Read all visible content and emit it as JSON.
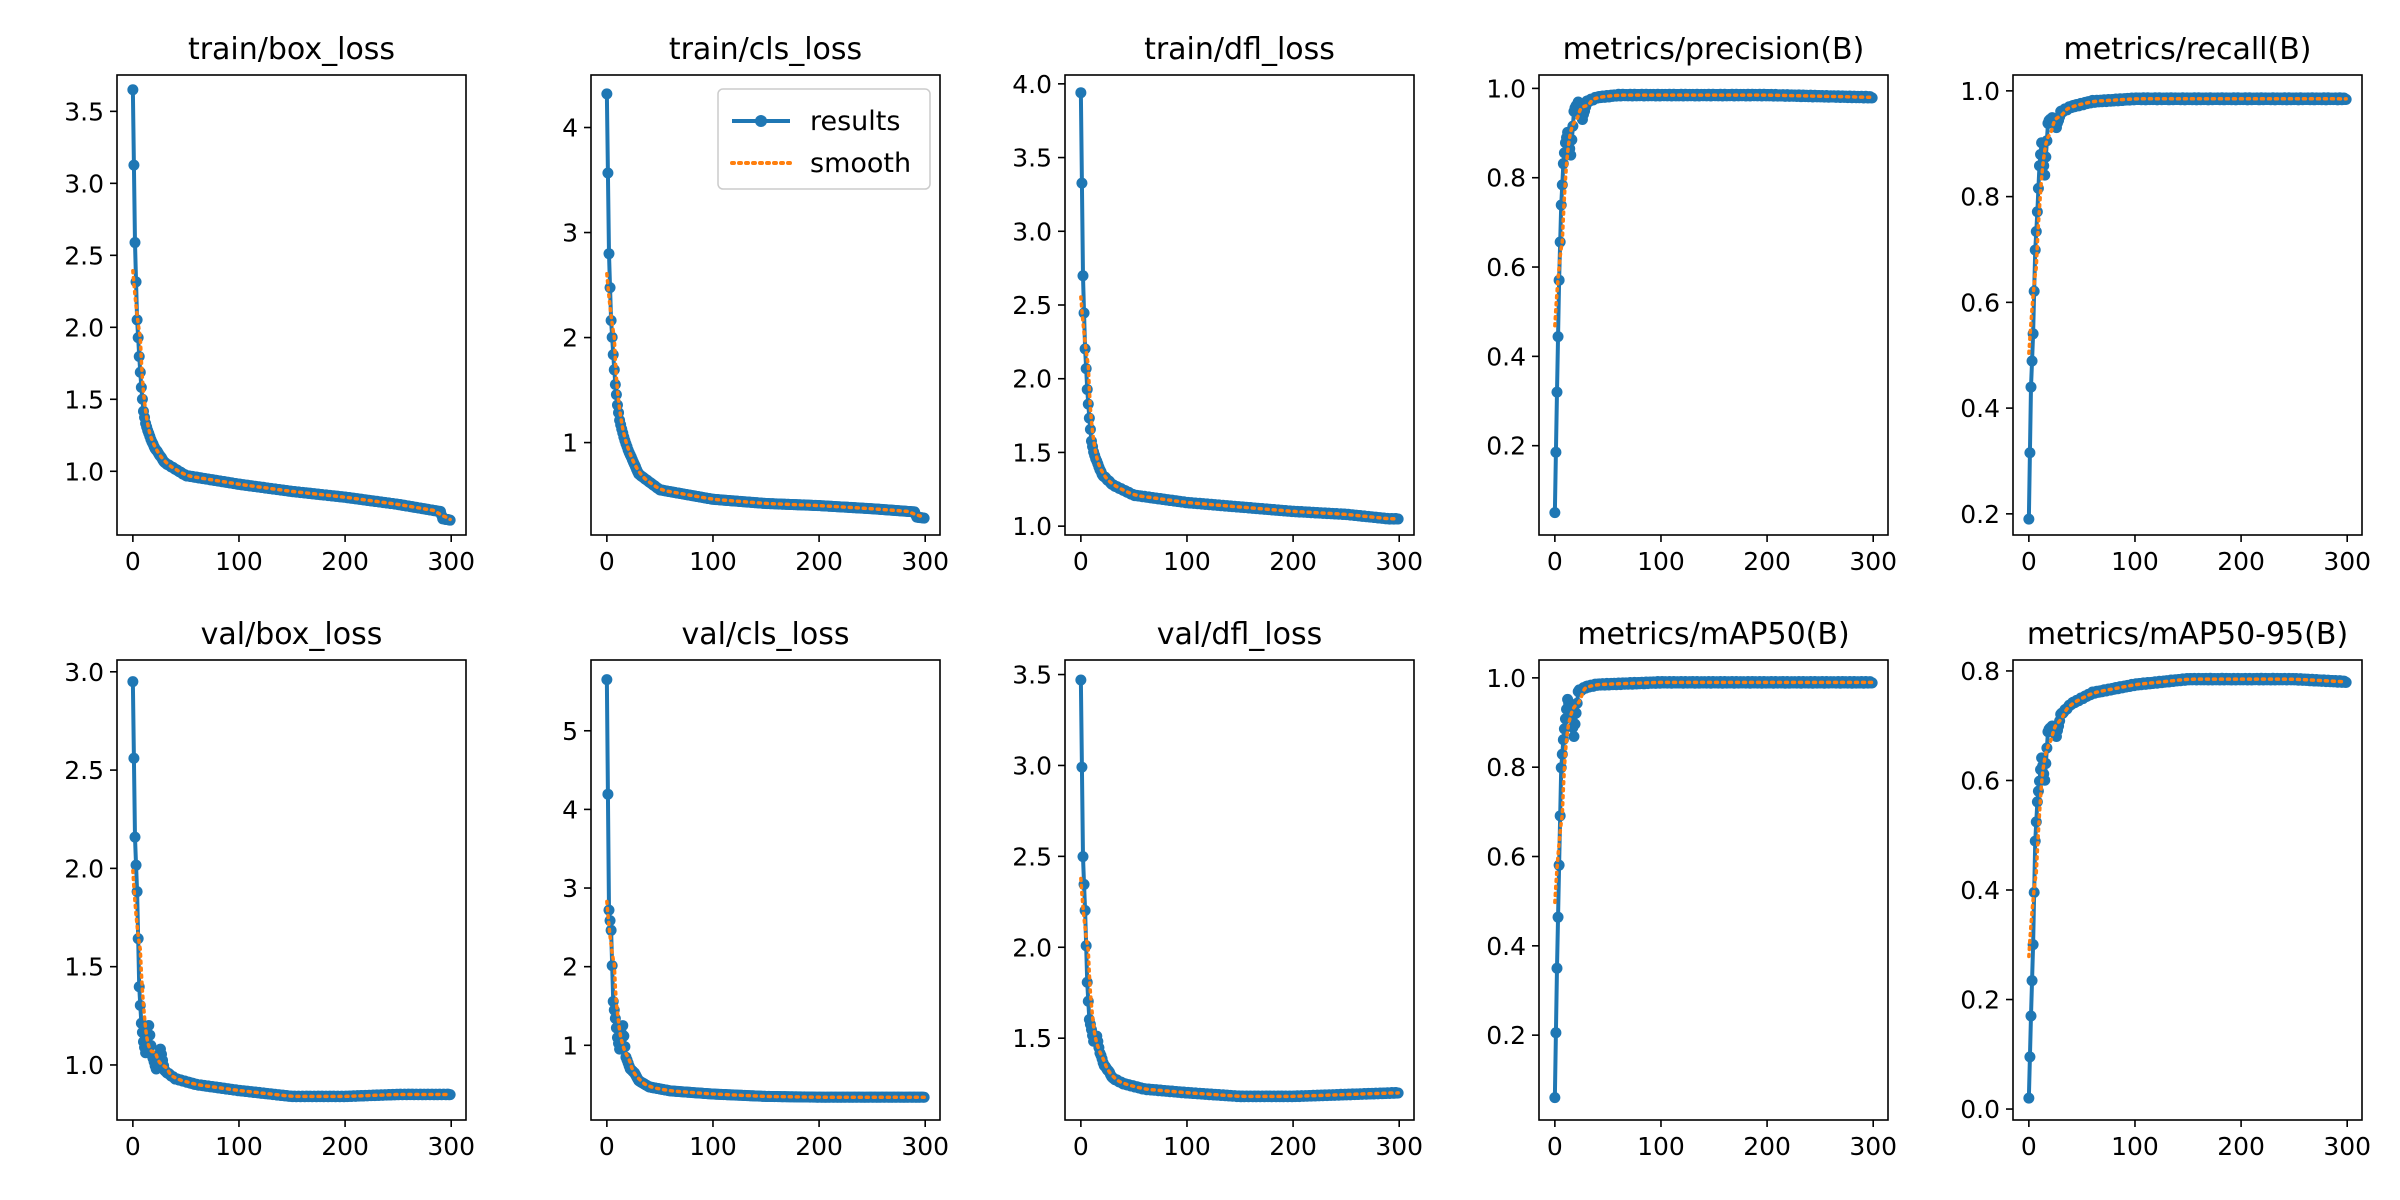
{
  "chart_data": [
    {
      "type": "line",
      "title": "train/box_loss",
      "xlim": [
        -14.95,
        313.95
      ],
      "ylim": [
        0.5575,
        3.7525
      ],
      "xticks": [
        0,
        100,
        200,
        300
      ],
      "yticks": [
        1.0,
        1.5,
        2.0,
        2.5,
        3.0,
        3.5
      ],
      "ytick_labels": [
        "1.0",
        "1.5",
        "2.0",
        "2.5",
        "3.0",
        "3.5"
      ],
      "knots": [
        [
          0,
          3.65
        ],
        [
          2,
          2.59
        ],
        [
          4,
          2.05
        ],
        [
          6,
          1.8
        ],
        [
          8,
          1.58
        ],
        [
          10,
          1.42
        ],
        [
          12,
          1.33
        ],
        [
          16,
          1.24
        ],
        [
          20,
          1.17
        ],
        [
          30,
          1.06
        ],
        [
          50,
          0.97
        ],
        [
          100,
          0.91
        ],
        [
          150,
          0.86
        ],
        [
          200,
          0.82
        ],
        [
          250,
          0.77
        ],
        [
          290,
          0.72
        ],
        [
          292,
          0.67
        ],
        [
          300,
          0.66
        ]
      ]
    },
    {
      "type": "line",
      "title": "train/cls_loss",
      "xlim": [
        -14.95,
        313.95
      ],
      "ylim": [
        0.12,
        4.5
      ],
      "xticks": [
        0,
        100,
        200,
        300
      ],
      "yticks": [
        1,
        2,
        3,
        4
      ],
      "ytick_labels": [
        "1",
        "2",
        "3",
        "4"
      ],
      "legend": {
        "entries": [
          "results",
          "smooth"
        ],
        "location": "upper right"
      },
      "knots": [
        [
          0,
          4.32
        ],
        [
          2,
          2.8
        ],
        [
          4,
          2.16
        ],
        [
          6,
          1.84
        ],
        [
          8,
          1.55
        ],
        [
          10,
          1.36
        ],
        [
          12,
          1.21
        ],
        [
          16,
          1.05
        ],
        [
          20,
          0.93
        ],
        [
          30,
          0.7
        ],
        [
          50,
          0.55
        ],
        [
          100,
          0.46
        ],
        [
          150,
          0.42
        ],
        [
          200,
          0.4
        ],
        [
          250,
          0.37
        ],
        [
          290,
          0.34
        ],
        [
          292,
          0.29
        ],
        [
          300,
          0.28
        ]
      ]
    },
    {
      "type": "line",
      "title": "train/dfl_loss",
      "xlim": [
        -14.95,
        313.95
      ],
      "ylim": [
        0.94,
        4.06
      ],
      "xticks": [
        0,
        100,
        200,
        300
      ],
      "yticks": [
        1.0,
        1.5,
        2.0,
        2.5,
        3.0,
        3.5,
        4.0
      ],
      "ytick_labels": [
        "1.0",
        "1.5",
        "2.0",
        "2.5",
        "3.0",
        "3.5",
        "4.0"
      ],
      "knots": [
        [
          0,
          3.94
        ],
        [
          2,
          2.7
        ],
        [
          4,
          2.2
        ],
        [
          6,
          1.93
        ],
        [
          8,
          1.73
        ],
        [
          10,
          1.58
        ],
        [
          12,
          1.5
        ],
        [
          16,
          1.42
        ],
        [
          20,
          1.35
        ],
        [
          30,
          1.28
        ],
        [
          50,
          1.21
        ],
        [
          100,
          1.16
        ],
        [
          150,
          1.13
        ],
        [
          200,
          1.1
        ],
        [
          250,
          1.08
        ],
        [
          290,
          1.05
        ],
        [
          300,
          1.05
        ]
      ]
    },
    {
      "type": "line",
      "title": "metrics/precision(B)",
      "xlim": [
        -14.95,
        313.95
      ],
      "ylim": [
        0.0,
        1.03
      ],
      "xticks": [
        0,
        100,
        200,
        300
      ],
      "yticks": [
        0.2,
        0.4,
        0.6,
        0.8,
        1.0
      ],
      "ytick_labels": [
        "0.2",
        "0.4",
        "0.6",
        "0.8",
        "1.0"
      ],
      "knots": [
        [
          0,
          0.05
        ],
        [
          2,
          0.32
        ],
        [
          4,
          0.57
        ],
        [
          6,
          0.74
        ],
        [
          8,
          0.83
        ],
        [
          10,
          0.88
        ],
        [
          12,
          0.9
        ],
        [
          15,
          0.85
        ],
        [
          18,
          0.95
        ],
        [
          22,
          0.97
        ],
        [
          26,
          0.93
        ],
        [
          30,
          0.97
        ],
        [
          40,
          0.98
        ],
        [
          60,
          0.985
        ],
        [
          100,
          0.985
        ],
        [
          200,
          0.985
        ],
        [
          300,
          0.98
        ]
      ]
    },
    {
      "type": "line",
      "title": "metrics/recall(B)",
      "xlim": [
        -14.95,
        313.95
      ],
      "ylim": [
        0.16,
        1.03
      ],
      "xticks": [
        0,
        100,
        200,
        300
      ],
      "yticks": [
        0.2,
        0.4,
        0.6,
        0.8,
        1.0
      ],
      "ytick_labels": [
        "0.2",
        "0.4",
        "0.6",
        "0.8",
        "1.0"
      ],
      "knots": [
        [
          0,
          0.19
        ],
        [
          2,
          0.44
        ],
        [
          4,
          0.54
        ],
        [
          6,
          0.7
        ],
        [
          8,
          0.77
        ],
        [
          10,
          0.86
        ],
        [
          12,
          0.9
        ],
        [
          15,
          0.84
        ],
        [
          18,
          0.94
        ],
        [
          22,
          0.95
        ],
        [
          26,
          0.93
        ],
        [
          30,
          0.96
        ],
        [
          40,
          0.97
        ],
        [
          60,
          0.98
        ],
        [
          100,
          0.985
        ],
        [
          200,
          0.985
        ],
        [
          300,
          0.985
        ]
      ]
    },
    {
      "type": "line",
      "title": "val/box_loss",
      "xlim": [
        -14.95,
        313.95
      ],
      "ylim": [
        0.72,
        3.06
      ],
      "xticks": [
        0,
        100,
        200,
        300
      ],
      "yticks": [
        1.0,
        1.5,
        2.0,
        2.5,
        3.0
      ],
      "ytick_labels": [
        "1.0",
        "1.5",
        "2.0",
        "2.5",
        "3.0"
      ],
      "knots": [
        [
          0,
          2.95
        ],
        [
          2,
          2.16
        ],
        [
          4,
          1.88
        ],
        [
          6,
          1.4
        ],
        [
          8,
          1.21
        ],
        [
          10,
          1.12
        ],
        [
          12,
          1.06
        ],
        [
          15,
          1.2
        ],
        [
          18,
          1.05
        ],
        [
          22,
          0.98
        ],
        [
          26,
          1.08
        ],
        [
          30,
          0.97
        ],
        [
          40,
          0.93
        ],
        [
          60,
          0.9
        ],
        [
          100,
          0.87
        ],
        [
          150,
          0.84
        ],
        [
          200,
          0.84
        ],
        [
          250,
          0.85
        ],
        [
          300,
          0.85
        ]
      ]
    },
    {
      "type": "line",
      "title": "val/cls_loss",
      "xlim": [
        -14.95,
        313.95
      ],
      "ylim": [
        0.05,
        5.9
      ],
      "xticks": [
        0,
        100,
        200,
        300
      ],
      "yticks": [
        1,
        2,
        3,
        4,
        5
      ],
      "ytick_labels": [
        "1",
        "2",
        "3",
        "4",
        "5"
      ],
      "knots": [
        [
          0,
          5.65
        ],
        [
          2,
          2.72
        ],
        [
          4,
          2.46
        ],
        [
          6,
          1.56
        ],
        [
          8,
          1.34
        ],
        [
          10,
          1.1
        ],
        [
          12,
          0.95
        ],
        [
          15,
          1.25
        ],
        [
          18,
          0.85
        ],
        [
          22,
          0.7
        ],
        [
          26,
          0.65
        ],
        [
          30,
          0.55
        ],
        [
          40,
          0.47
        ],
        [
          60,
          0.42
        ],
        [
          100,
          0.38
        ],
        [
          150,
          0.35
        ],
        [
          200,
          0.34
        ],
        [
          300,
          0.34
        ]
      ]
    },
    {
      "type": "line",
      "title": "val/dfl_loss",
      "xlim": [
        -14.95,
        313.95
      ],
      "ylim": [
        1.05,
        3.58
      ],
      "xticks": [
        0,
        100,
        200,
        300
      ],
      "yticks": [
        1.5,
        2.0,
        2.5,
        3.0,
        3.5
      ],
      "ytick_labels": [
        "1.5",
        "2.0",
        "2.5",
        "3.0",
        "3.5"
      ],
      "knots": [
        [
          0,
          3.47
        ],
        [
          2,
          2.5
        ],
        [
          4,
          2.2
        ],
        [
          6,
          1.81
        ],
        [
          8,
          1.6
        ],
        [
          10,
          1.55
        ],
        [
          12,
          1.48
        ],
        [
          15,
          1.51
        ],
        [
          18,
          1.42
        ],
        [
          22,
          1.35
        ],
        [
          26,
          1.32
        ],
        [
          30,
          1.28
        ],
        [
          40,
          1.25
        ],
        [
          60,
          1.22
        ],
        [
          100,
          1.2
        ],
        [
          150,
          1.18
        ],
        [
          200,
          1.18
        ],
        [
          250,
          1.19
        ],
        [
          300,
          1.2
        ]
      ]
    },
    {
      "type": "line",
      "title": "metrics/mAP50(B)",
      "xlim": [
        -14.95,
        313.95
      ],
      "ylim": [
        0.01,
        1.04
      ],
      "xticks": [
        0,
        100,
        200,
        300
      ],
      "yticks": [
        0.2,
        0.4,
        0.6,
        0.8,
        1.0
      ],
      "ytick_labels": [
        "0.2",
        "0.4",
        "0.6",
        "0.8",
        "1.0"
      ],
      "knots": [
        [
          0,
          0.06
        ],
        [
          2,
          0.35
        ],
        [
          4,
          0.58
        ],
        [
          6,
          0.8
        ],
        [
          8,
          0.86
        ],
        [
          10,
          0.91
        ],
        [
          12,
          0.95
        ],
        [
          15,
          0.93
        ],
        [
          18,
          0.87
        ],
        [
          22,
          0.97
        ],
        [
          26,
          0.975
        ],
        [
          30,
          0.98
        ],
        [
          40,
          0.985
        ],
        [
          100,
          0.99
        ],
        [
          200,
          0.99
        ],
        [
          300,
          0.99
        ]
      ]
    },
    {
      "type": "line",
      "title": "metrics/mAP50-95(B)",
      "xlim": [
        -14.95,
        313.95
      ],
      "ylim": [
        -0.02,
        0.82
      ],
      "xticks": [
        0,
        100,
        200,
        300
      ],
      "yticks": [
        0.0,
        0.2,
        0.4,
        0.6,
        0.8
      ],
      "ytick_labels": [
        "0.0",
        "0.2",
        "0.4",
        "0.6",
        "0.8"
      ],
      "knots": [
        [
          0,
          0.02
        ],
        [
          2,
          0.17
        ],
        [
          4,
          0.3
        ],
        [
          6,
          0.49
        ],
        [
          8,
          0.56
        ],
        [
          10,
          0.6
        ],
        [
          12,
          0.64
        ],
        [
          15,
          0.6
        ],
        [
          18,
          0.69
        ],
        [
          22,
          0.7
        ],
        [
          26,
          0.68
        ],
        [
          30,
          0.72
        ],
        [
          40,
          0.74
        ],
        [
          60,
          0.76
        ],
        [
          100,
          0.775
        ],
        [
          150,
          0.785
        ],
        [
          200,
          0.785
        ],
        [
          250,
          0.785
        ],
        [
          300,
          0.78
        ]
      ]
    }
  ],
  "colors": {
    "results": "#1f77b4",
    "smooth": "#ff7f0e",
    "axes": "#000000",
    "background": "#ffffff"
  }
}
